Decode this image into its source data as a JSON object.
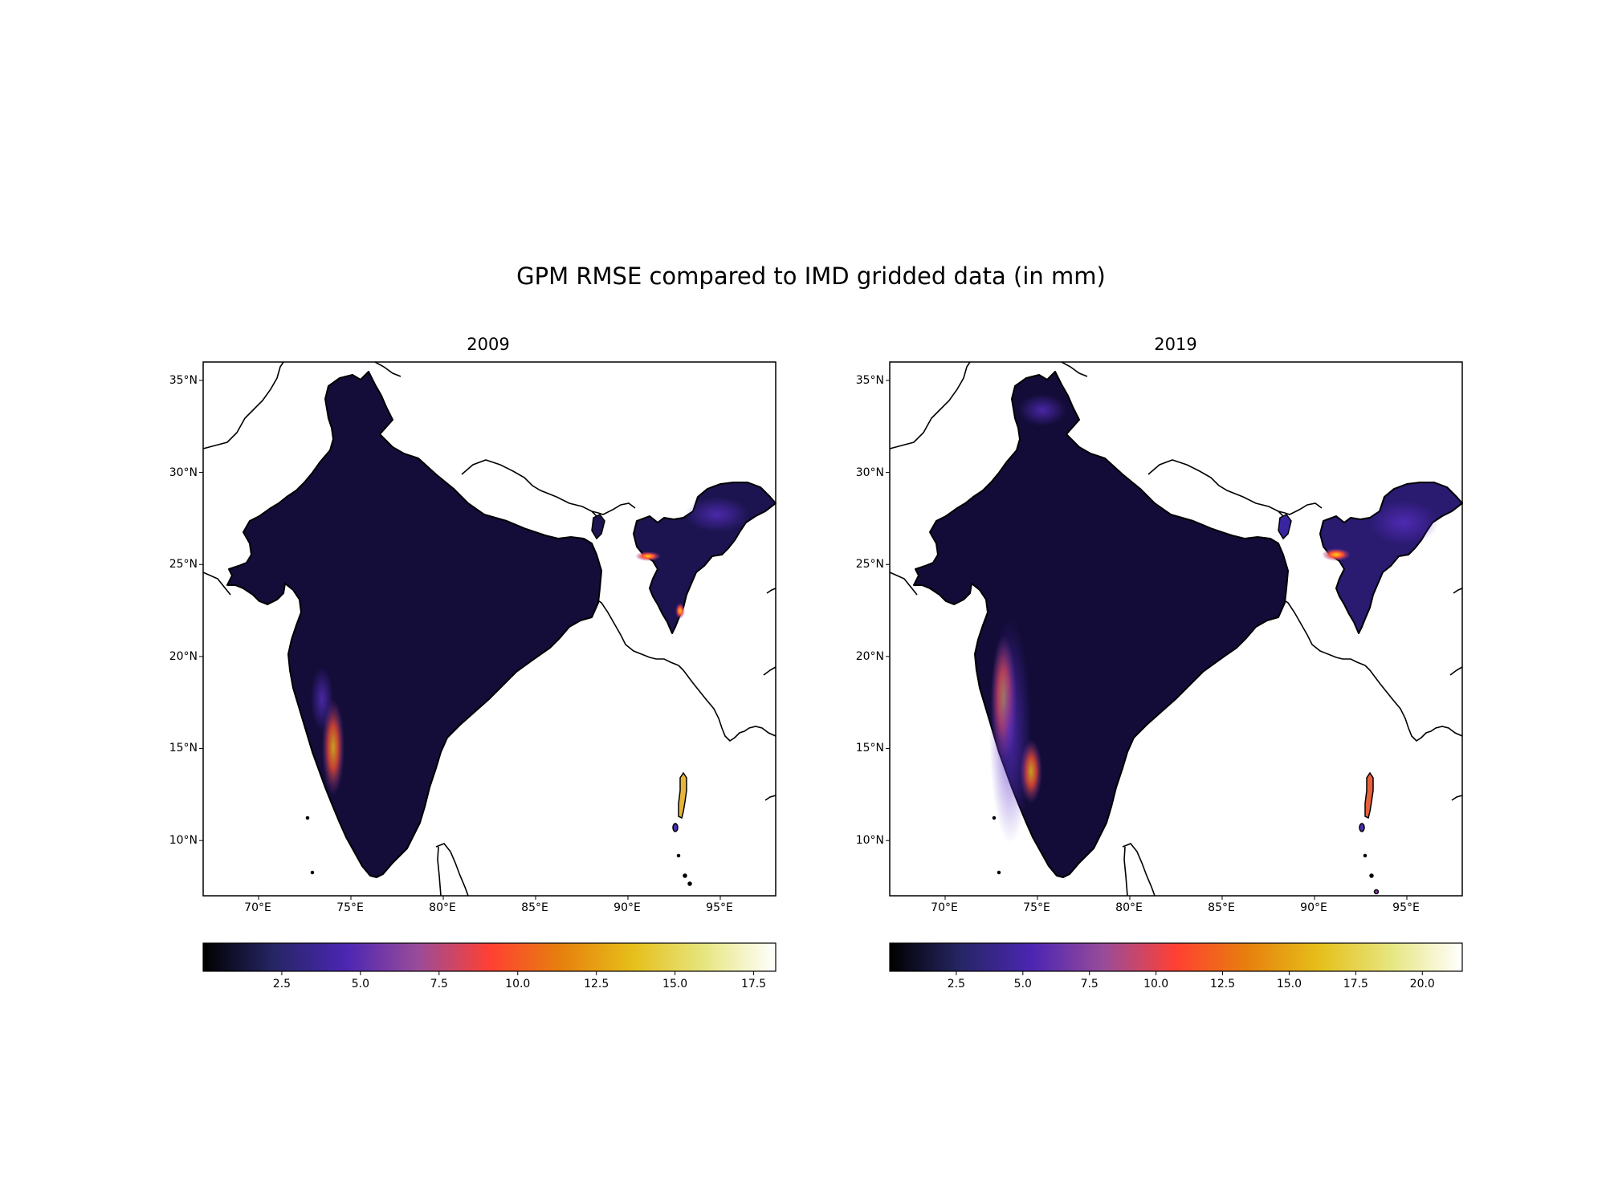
{
  "figure": {
    "title": "GPM RMSE compared to IMD gridded data (in mm)"
  },
  "map_extent": {
    "lon": [
      67,
      98
    ],
    "lat": [
      7,
      36
    ]
  },
  "colormap": {
    "name": "CMRmap",
    "stops": [
      "#000000",
      "#262666",
      "#4c26b3",
      "#994c99",
      "#ff4033",
      "#e6800d",
      "#e6bf1a",
      "#e6e680",
      "#ffffff"
    ]
  },
  "panels": [
    {
      "id": "2009",
      "title": "2009",
      "lon_ticks": [
        "70°E",
        "75°E",
        "80°E",
        "85°E",
        "90°E",
        "95°E"
      ],
      "lon_tick_values": [
        70,
        75,
        80,
        85,
        90,
        95
      ],
      "lat_ticks": [
        "10°N",
        "15°N",
        "20°N",
        "25°N",
        "30°N",
        "35°N"
      ],
      "lat_tick_values": [
        10,
        15,
        20,
        25,
        30,
        35
      ],
      "colorbar": {
        "min": 0.0,
        "max": 18.2,
        "ticks": [
          "2.5",
          "5.0",
          "7.5",
          "10.0",
          "12.5",
          "15.0",
          "17.5"
        ],
        "tick_values": [
          2.5,
          5.0,
          7.5,
          10.0,
          12.5,
          15.0,
          17.5
        ]
      }
    },
    {
      "id": "2019",
      "title": "2019",
      "lon_ticks": [
        "70°E",
        "75°E",
        "80°E",
        "85°E",
        "90°E",
        "95°E"
      ],
      "lon_tick_values": [
        70,
        75,
        80,
        85,
        90,
        95
      ],
      "lat_ticks": [
        "10°N",
        "15°N",
        "20°N",
        "25°N",
        "30°N",
        "35°N"
      ],
      "lat_tick_values": [
        10,
        15,
        20,
        25,
        30,
        35
      ],
      "colorbar": {
        "min": 0.0,
        "max": 21.5,
        "ticks": [
          "2.5",
          "5.0",
          "7.5",
          "10.0",
          "12.5",
          "15.0",
          "17.5",
          "20.0"
        ],
        "tick_values": [
          2.5,
          5.0,
          7.5,
          10.0,
          12.5,
          15.0,
          17.5,
          20.0
        ]
      }
    }
  ]
}
